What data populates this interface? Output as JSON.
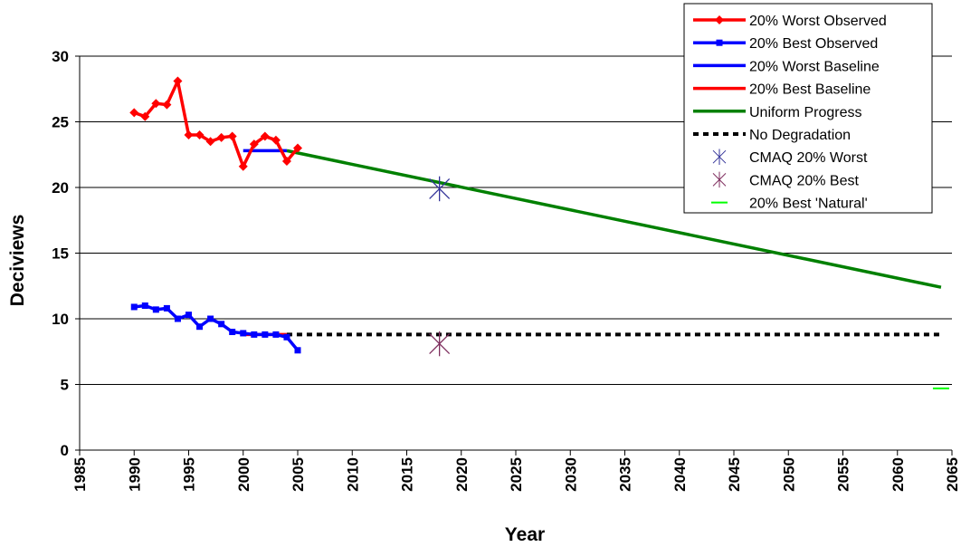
{
  "chart_data": {
    "type": "line",
    "title": "",
    "xlabel": "Year",
    "ylabel": "Deciviews",
    "xlim": [
      1985,
      2065
    ],
    "ylim": [
      0,
      30
    ],
    "x_ticks": [
      1985,
      1990,
      1995,
      2000,
      2005,
      2010,
      2015,
      2020,
      2025,
      2030,
      2035,
      2040,
      2045,
      2050,
      2055,
      2060,
      2065
    ],
    "y_ticks": [
      0,
      5,
      10,
      15,
      20,
      25,
      30
    ],
    "grid": "horizontal",
    "legend_position": "top-right",
    "series": [
      {
        "name": "20% Worst Observed",
        "color": "#ff0000",
        "marker": "diamond",
        "style": "solid",
        "points": [
          [
            1990,
            25.7
          ],
          [
            1991,
            25.4
          ],
          [
            1992,
            26.4
          ],
          [
            1993,
            26.3
          ],
          [
            1994,
            28.1
          ],
          [
            1995,
            24.0
          ],
          [
            1996,
            24.0
          ],
          [
            1997,
            23.5
          ],
          [
            1998,
            23.8
          ],
          [
            1999,
            23.9
          ],
          [
            2000,
            21.6
          ],
          [
            2001,
            23.3
          ],
          [
            2002,
            23.9
          ],
          [
            2003,
            23.6
          ],
          [
            2004,
            22.0
          ],
          [
            2005,
            23.0
          ]
        ]
      },
      {
        "name": "20% Best Observed",
        "color": "#0000ff",
        "marker": "square",
        "style": "solid",
        "points": [
          [
            1990,
            10.9
          ],
          [
            1991,
            11.0
          ],
          [
            1992,
            10.7
          ],
          [
            1993,
            10.8
          ],
          [
            1994,
            10.0
          ],
          [
            1995,
            10.3
          ],
          [
            1996,
            9.4
          ],
          [
            1997,
            10.0
          ],
          [
            1998,
            9.6
          ],
          [
            1999,
            9.0
          ],
          [
            2000,
            8.9
          ],
          [
            2001,
            8.8
          ],
          [
            2002,
            8.8
          ],
          [
            2003,
            8.8
          ],
          [
            2004,
            8.6
          ],
          [
            2005,
            7.6
          ]
        ]
      },
      {
        "name": "20% Worst Baseline",
        "color": "#0000ff",
        "marker": "none",
        "style": "solid",
        "points": [
          [
            2000,
            22.8
          ],
          [
            2004,
            22.8
          ]
        ]
      },
      {
        "name": "20% Best Baseline",
        "color": "#ff0000",
        "marker": "none",
        "style": "solid",
        "points": [
          [
            2000,
            8.8
          ],
          [
            2004,
            8.8
          ]
        ]
      },
      {
        "name": "Uniform Progress",
        "color": "#008000",
        "marker": "none",
        "style": "solid",
        "points": [
          [
            2004,
            22.8
          ],
          [
            2064,
            12.4
          ]
        ]
      },
      {
        "name": "No Degradation",
        "color": "#000000",
        "marker": "none",
        "style": "dotted",
        "points": [
          [
            2004,
            8.8
          ],
          [
            2064,
            8.8
          ]
        ]
      },
      {
        "name": "CMAQ 20% Worst",
        "color": "#333399",
        "marker": "asterisk",
        "style": "none",
        "points": [
          [
            2018,
            19.9
          ]
        ]
      },
      {
        "name": "CMAQ 20% Best",
        "color": "#7f2f5f",
        "marker": "asterisk",
        "style": "none",
        "points": [
          [
            2018,
            8.1
          ]
        ]
      },
      {
        "name": "20% Best 'Natural'",
        "color": "#00ff00",
        "marker": "dash",
        "style": "none",
        "points": [
          [
            2064,
            4.7
          ]
        ]
      }
    ]
  }
}
